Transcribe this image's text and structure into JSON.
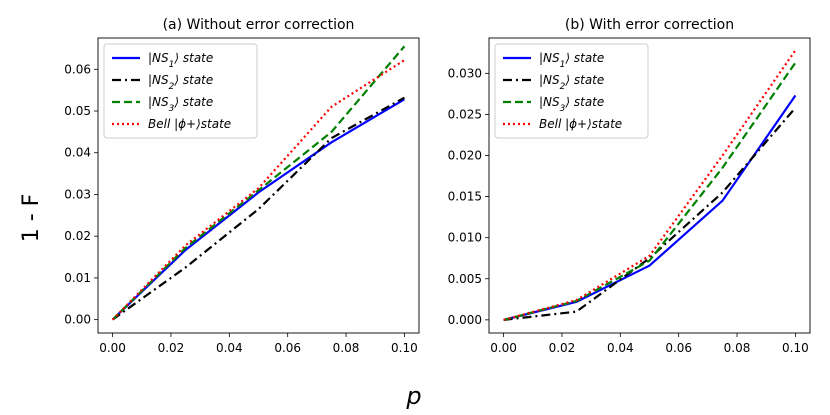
{
  "chart_data": {
    "type": "line",
    "ylabel": "1 - F",
    "xlabel": "p",
    "panels": [
      {
        "title": "(a) Without error correction",
        "x": [
          0,
          0.025,
          0.05,
          0.075,
          0.1
        ],
        "xlim": [
          -0.005,
          0.105
        ],
        "ylim": [
          -0.0032,
          0.0675
        ],
        "xticks": [
          0,
          0.02,
          0.04,
          0.06,
          0.08,
          0.1
        ],
        "xtick_labels": [
          "0.00",
          "0.02",
          "0.04",
          "0.06",
          "0.08",
          "0.10"
        ],
        "yticks": [
          0,
          0.01,
          0.02,
          0.03,
          0.04,
          0.05,
          0.06
        ],
        "ytick_labels": [
          "0.00",
          "0.01",
          "0.02",
          "0.03",
          "0.04",
          "0.05",
          "0.06"
        ],
        "legend_position": "top-left",
        "series": [
          {
            "name": "|NS1⟩ state",
            "color": "#0000ff",
            "dash": "solid",
            "values": [
              0,
              0.0167,
              0.0305,
              0.0425,
              0.0528
            ]
          },
          {
            "name": "|NS2⟩ state",
            "color": "#000000",
            "dash": "dashdot",
            "values": [
              0,
              0.0125,
              0.0265,
              0.0435,
              0.0532
            ]
          },
          {
            "name": "|NS3⟩ state",
            "color": "#008000",
            "dash": "dashed",
            "values": [
              0,
              0.0172,
              0.031,
              0.045,
              0.0655
            ]
          },
          {
            "name": "Bell |ϕ+⟩state",
            "color": "#ff0000",
            "dash": "dotted",
            "values": [
              0,
              0.0178,
              0.0315,
              0.051,
              0.0622
            ]
          }
        ]
      },
      {
        "title": "(b) With error correction",
        "x": [
          0,
          0.025,
          0.05,
          0.075,
          0.1
        ],
        "xlim": [
          -0.005,
          0.105
        ],
        "ylim": [
          -0.0016,
          0.0343
        ],
        "xticks": [
          0,
          0.02,
          0.04,
          0.06,
          0.08,
          0.1
        ],
        "xtick_labels": [
          "0.00",
          "0.02",
          "0.04",
          "0.06",
          "0.08",
          "0.10"
        ],
        "yticks": [
          0,
          0.005,
          0.01,
          0.015,
          0.02,
          0.025,
          0.03
        ],
        "ytick_labels": [
          "0.000",
          "0.005",
          "0.010",
          "0.015",
          "0.020",
          "0.025",
          "0.030"
        ],
        "legend_position": "top-left",
        "series": [
          {
            "name": "|NS1⟩ state",
            "color": "#0000ff",
            "dash": "solid",
            "values": [
              0,
              0.0022,
              0.0066,
              0.0145,
              0.0273
            ]
          },
          {
            "name": "|NS2⟩ state",
            "color": "#000000",
            "dash": "dashdot",
            "values": [
              0,
              0.001,
              0.0075,
              0.0155,
              0.0258
            ]
          },
          {
            "name": "|NS3⟩ state",
            "color": "#008000",
            "dash": "dashed",
            "values": [
              0,
              0.0023,
              0.0072,
              0.0185,
              0.0313
            ]
          },
          {
            "name": "Bell |ϕ+⟩state",
            "color": "#ff0000",
            "dash": "dotted",
            "values": [
              0,
              0.0024,
              0.0078,
              0.02,
              0.0328
            ]
          }
        ]
      }
    ]
  }
}
